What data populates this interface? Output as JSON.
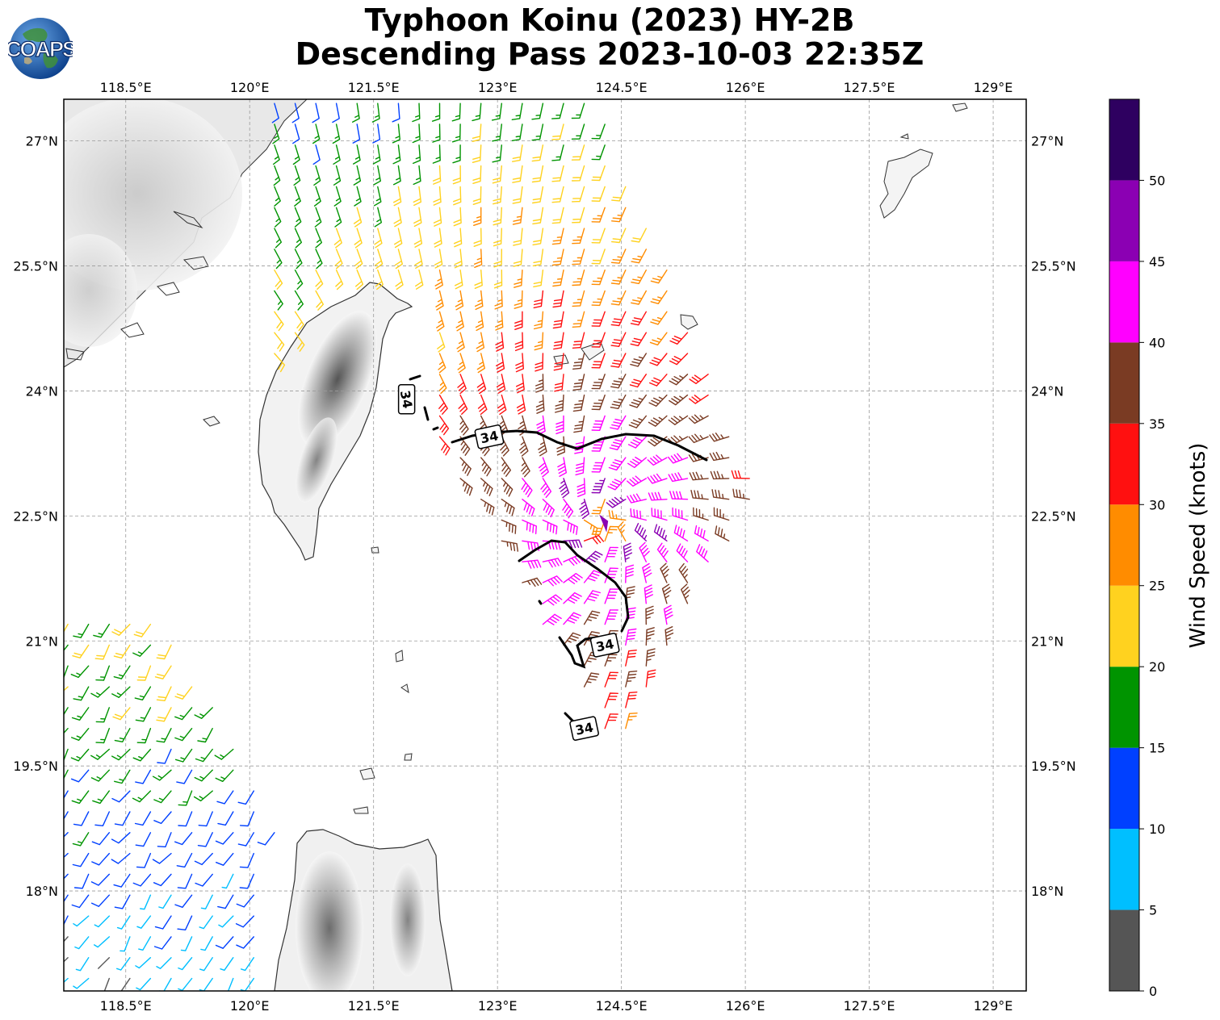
{
  "header": {
    "title_line1": "Typhoon Koinu (2023) HY-2B",
    "title_line2": "Descending Pass 2023-10-03 22:35Z",
    "logo_text": "COAPS"
  },
  "map": {
    "lon_range": [
      117.75,
      129.4
    ],
    "lat_range": [
      16.8,
      27.5
    ],
    "lon_ticks": [
      {
        "value": 118.5,
        "label": "118.5°E"
      },
      {
        "value": 120.0,
        "label": "120°E"
      },
      {
        "value": 121.5,
        "label": "121.5°E"
      },
      {
        "value": 123.0,
        "label": "123°E"
      },
      {
        "value": 124.5,
        "label": "124.5°E"
      },
      {
        "value": 126.0,
        "label": "126°E"
      },
      {
        "value": 127.5,
        "label": "127.5°E"
      },
      {
        "value": 129.0,
        "label": "129°E"
      }
    ],
    "lat_ticks": [
      {
        "value": 27.0,
        "label": "27°N"
      },
      {
        "value": 25.5,
        "label": "25.5°N"
      },
      {
        "value": 24.0,
        "label": "24°N"
      },
      {
        "value": 22.5,
        "label": "22.5°N"
      },
      {
        "value": 21.0,
        "label": "21°N"
      },
      {
        "value": 19.5,
        "label": "19.5°N"
      },
      {
        "value": 18.0,
        "label": "18°N"
      }
    ],
    "grid": true,
    "storm_center": {
      "lon": 124.3,
      "lat": 22.4
    },
    "contour_34kt": {
      "level_label": "34",
      "label_positions": [
        {
          "lon": 121.9,
          "lat": 23.9
        },
        {
          "lon": 122.9,
          "lat": 23.45
        },
        {
          "lon": 124.3,
          "lat": 20.95
        },
        {
          "lon": 124.05,
          "lat": 19.95
        }
      ]
    }
  },
  "colorbar": {
    "title": "Wind Speed (knots)",
    "ticks": [
      "0",
      "5",
      "10",
      "15",
      "20",
      "25",
      "30",
      "35",
      "40",
      "45",
      "50"
    ],
    "colors": [
      "#555555",
      "#00bfff",
      "#0040ff",
      "#009400",
      "#ffd21f",
      "#ff8c00",
      "#ff1010",
      "#7a3b23",
      "#ff00ff",
      "#8b00b3",
      "#2e0060"
    ],
    "max": 55
  }
}
